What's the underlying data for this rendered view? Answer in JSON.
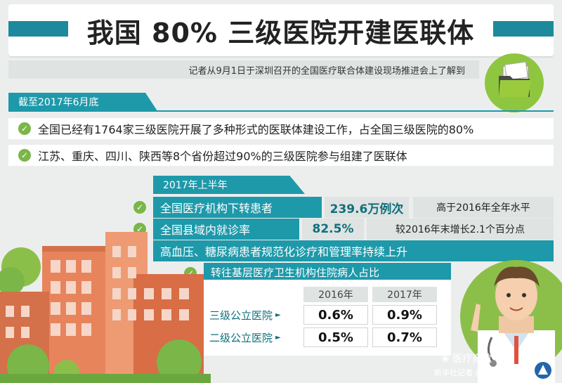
{
  "header": {
    "title": "我国 80% 三级医院开建医联体",
    "subtitle": "记者从9月1日于深圳召开的全国医疗联合体建设现场推进会上了解到"
  },
  "section1": {
    "tag": "截至2017年6月底",
    "items": [
      "全国已经有1764家三级医院开展了多种形式的医联体建设工作，占全国三级医院的80%",
      "江苏、重庆、四川、陕西等8个省份超过90%的三级医院参与组建了医联体"
    ]
  },
  "section2": {
    "tag": "2017年上半年",
    "rows": [
      {
        "label": "全国医疗机构下转患者",
        "value": "239.6万例次",
        "note": "高于2016年全年水平"
      },
      {
        "label": "全国县域内就诊率",
        "value": "82.5%",
        "note": "较2016年末增长2.1个百分点"
      }
    ],
    "statement": "高血压、糖尿病患者规范化诊疗和管理率持续上升",
    "table": {
      "title": "转往基层医疗卫生机构住院病人占比",
      "years": [
        "2016年",
        "2017年"
      ],
      "rows": [
        {
          "label": "三级公立医院",
          "v2016": "0.6%",
          "v2017": "0.9%"
        },
        {
          "label": "二级公立医院",
          "v2016": "0.5%",
          "v2017": "0.7%"
        }
      ]
    }
  },
  "footer": {
    "credit": "新华社记者 曲振东 编制",
    "watermark": "医疗商数"
  },
  "colors": {
    "teal": "#1e99aa",
    "dark_teal": "#1c8a9c",
    "green": "#7ab648",
    "building": "#e8845c"
  }
}
